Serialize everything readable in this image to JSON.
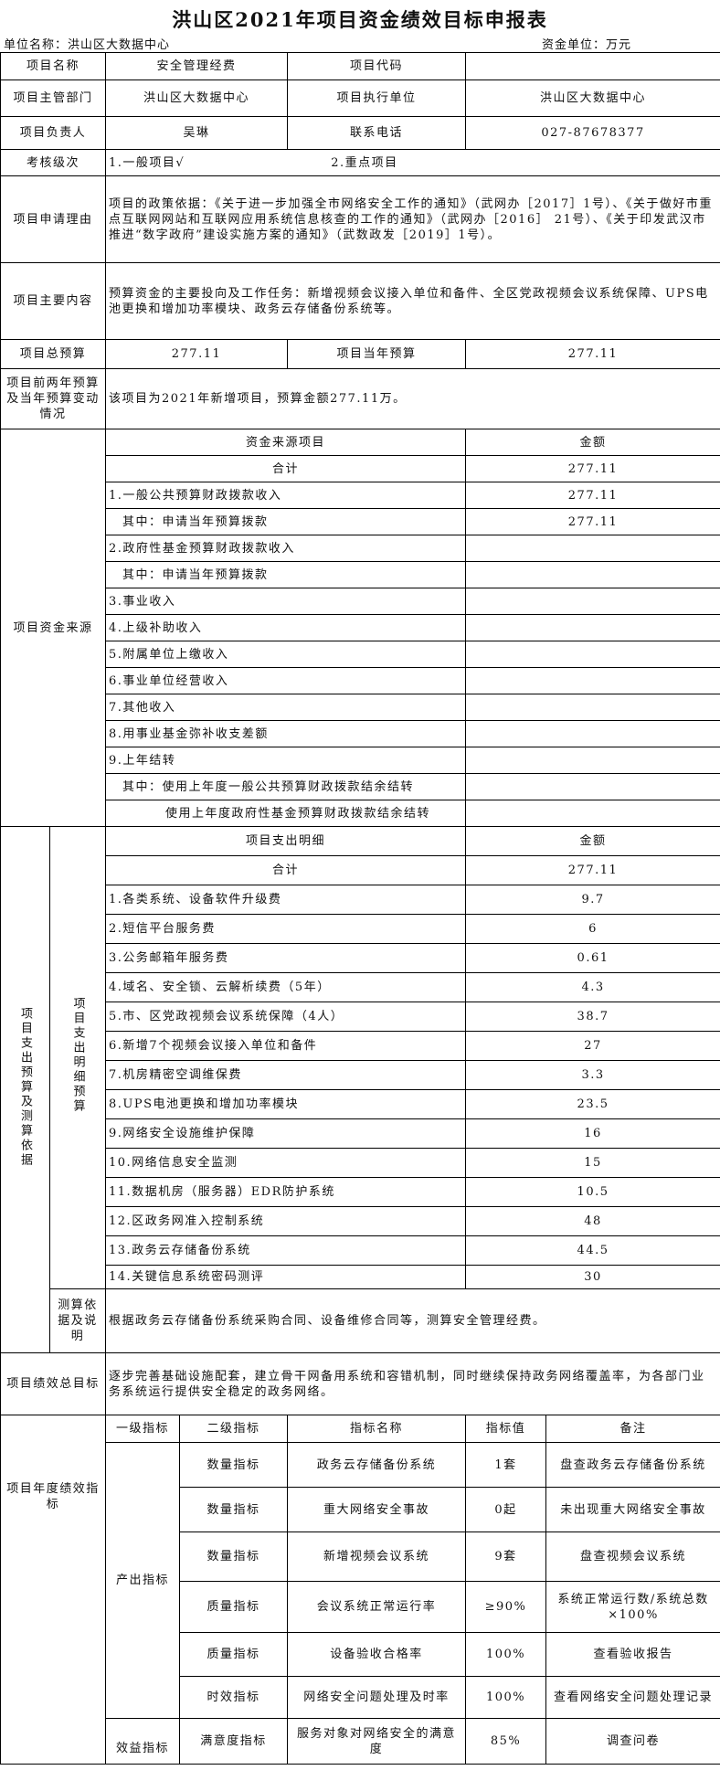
{
  "title": "洪山区2021年项目资金绩效目标申报表",
  "unit_name": "单位名称：洪山区大数据中心",
  "fund_unit": "资金单位：万元",
  "basic": {
    "project_name_label": "项目名称",
    "project_name": "安全管理经费",
    "project_code_label": "项目代码",
    "project_code": "",
    "dept_label": "项目主管部门",
    "dept": "洪山区大数据中心",
    "exec_label": "项目执行单位",
    "exec": "洪山区大数据中心",
    "owner_label": "项目负责人",
    "owner": "吴琳",
    "phone_label": "联系电话",
    "phone": "027-87678377",
    "level_label": "考核级次",
    "level_opt1": "1.一般项目√",
    "level_opt2": "2.重点项目",
    "reason_label": "项目申请理由",
    "reason": "项目的政策依据：《关于进一步加强全市网络安全工作的通知》（武网办［2017］1号）、《关于做好市重点互联网网站和互联网应用系统信息核查的工作的通知》（武网办［2016］ 21号）、《关于印发武汉市推进“数字政府”建设实施方案的通知》（武数政发［2019］1号）。",
    "content_label": "项目主要内容",
    "content": "预算资金的主要投向及工作任务：新增视频会议接入单位和备件、全区党政视频会议系统保障、UPS电池更换和增加功率模块、政务云存储备份系统等。",
    "total_budget_label": "项目总预算",
    "total_budget": "277.11",
    "year_budget_label": "项目当年预算",
    "year_budget": "277.11",
    "change_label": "项目前两年预算及当年预算变动情况",
    "change": "该项目为2021年新增项目，预算金额277.11万。"
  },
  "funding": {
    "label": "项目资金来源",
    "header_item": "资金来源项目",
    "header_amount": "金额",
    "rows": [
      {
        "item": "合计",
        "amount": "277.11",
        "align": "c"
      },
      {
        "item": "1.一般公共预算财政拨款收入",
        "amount": "277.11",
        "align": "l"
      },
      {
        "item": "其中：申请当年预算拨款",
        "amount": "277.11",
        "align": "i"
      },
      {
        "item": "2.政府性基金预算财政拨款收入",
        "amount": "",
        "align": "l"
      },
      {
        "item": "其中：申请当年预算拨款",
        "amount": "",
        "align": "i"
      },
      {
        "item": "3.事业收入",
        "amount": "",
        "align": "l"
      },
      {
        "item": "4.上级补助收入",
        "amount": "",
        "align": "l"
      },
      {
        "item": "5.附属单位上缴收入",
        "amount": "",
        "align": "l"
      },
      {
        "item": "6.事业单位经营收入",
        "amount": "",
        "align": "l"
      },
      {
        "item": "7.其他收入",
        "amount": "",
        "align": "l"
      },
      {
        "item": "8.用事业基金弥补收支差额",
        "amount": "",
        "align": "l"
      },
      {
        "item": "9.上年结转",
        "amount": "",
        "align": "l"
      },
      {
        "item": "其中：使用上年度一般公共预算财政拨款结余结转",
        "amount": "",
        "align": "i"
      },
      {
        "item": "使用上年度政府性基金预算财政拨款结余结转",
        "amount": "",
        "align": "i2"
      }
    ]
  },
  "expenditure": {
    "label": "项目支出预算及测算依据",
    "detail_label": "项目支出明细预算",
    "header_item": "项目支出明细",
    "header_amount": "金额",
    "rows": [
      {
        "item": "合计",
        "amount": "277.11",
        "align": "c"
      },
      {
        "item": "1.各类系统、设备软件升级费",
        "amount": "9.7",
        "align": "l"
      },
      {
        "item": "2.短信平台服务费",
        "amount": "6",
        "align": "l"
      },
      {
        "item": "3.公务邮箱年服务费",
        "amount": "0.61",
        "align": "l"
      },
      {
        "item": "4.域名、安全锁、云解析续费（5年）",
        "amount": "4.3",
        "align": "l"
      },
      {
        "item": "5.市、区党政视频会议系统保障（4人）",
        "amount": "38.7",
        "align": "l"
      },
      {
        "item": "6.新增7个视频会议接入单位和备件",
        "amount": "27",
        "align": "l"
      },
      {
        "item": "7.机房精密空调维保费",
        "amount": "3.3",
        "align": "l"
      },
      {
        "item": "8.UPS电池更换和增加功率模块",
        "amount": "23.5",
        "align": "l"
      },
      {
        "item": "9.网络安全设施维护保障",
        "amount": "16",
        "align": "l"
      },
      {
        "item": "10.网络信息安全监测",
        "amount": "15",
        "align": "l"
      },
      {
        "item": "11.数据机房（服务器）EDR防护系统",
        "amount": "10.5",
        "align": "l"
      },
      {
        "item": "12.区政务网准入控制系统",
        "amount": "48",
        "align": "l"
      },
      {
        "item": "13.政务云存储备份系统",
        "amount": "44.5",
        "align": "l"
      },
      {
        "item": "14.关键信息系统密码测评",
        "amount": "30",
        "align": "l"
      }
    ],
    "basis_label": "测算依据及说明",
    "basis": "根据政务云存储备份系统采购合同、设备维修合同等，测算安全管理经费。"
  },
  "goal": {
    "label": "项目绩效总目标",
    "text": "逐步完善基础设施配套，建立骨干网备用系统和容错机制，同时继续保持政务网络覆盖率，为各部门业务系统运行提供安全稳定的政务网络。"
  },
  "indicators": {
    "label": "项目年度绩效指标",
    "headers": [
      "一级指标",
      "二级指标",
      "指标名称",
      "指标值",
      "备注"
    ],
    "level1_output": "产出指标",
    "level1_benefit": "效益指标",
    "rows": [
      {
        "level2": "数量指标",
        "name": "政务云存储备份系统",
        "value": "1套",
        "note": "盘查政务云存储备份系统"
      },
      {
        "level2": "数量指标",
        "name": "重大网络安全事故",
        "value": "0起",
        "note": "未出现重大网络安全事故"
      },
      {
        "level2": "数量指标",
        "name": "新增视频会议系统",
        "value": "9套",
        "note": "盘查视频会议系统"
      },
      {
        "level2": "质量指标",
        "name": "会议系统正常运行率",
        "value": "≥90%",
        "note": "系统正常运行数/系统总数×100%"
      },
      {
        "level2": "质量指标",
        "name": "设备验收合格率",
        "value": "100%",
        "note": "查看验收报告"
      },
      {
        "level2": "时效指标",
        "name": "网络安全问题处理及时率",
        "value": "100%",
        "note": "查看网络安全问题处理记录"
      },
      {
        "level2": "满意度指标",
        "name": "服务对象对网络安全的满意度",
        "value": "85%",
        "note": "调查问卷"
      }
    ]
  }
}
